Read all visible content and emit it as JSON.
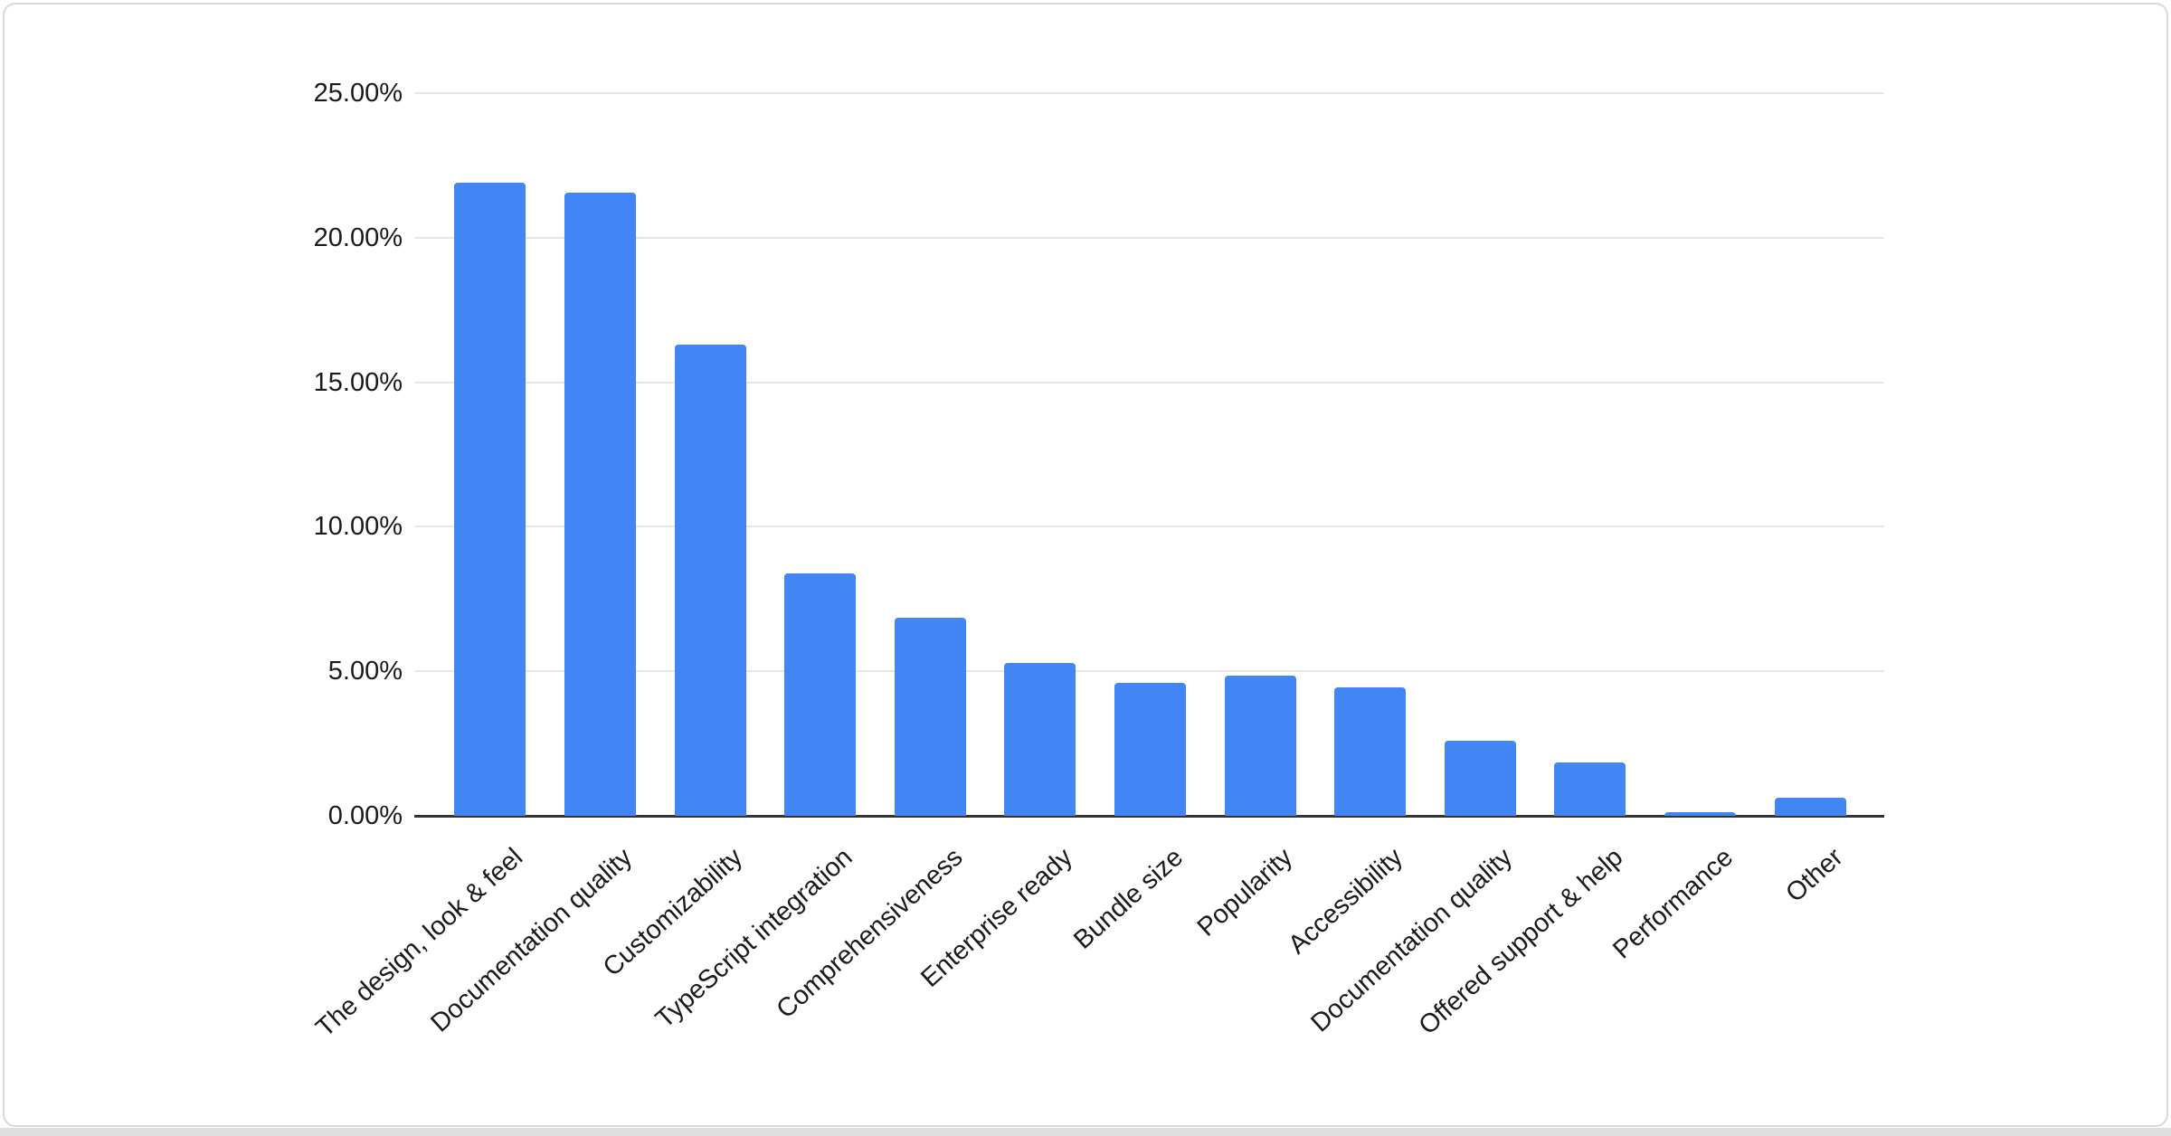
{
  "chart_data": {
    "type": "bar",
    "title": "",
    "xlabel": "",
    "ylabel": "",
    "categories": [
      "The design, look & feel",
      "Documentation quality",
      "Customizability",
      "TypeScript integration",
      "Comprehensiveness",
      "Enterprise ready",
      "Bundle size",
      "Popularity",
      "Accessibility",
      "Documentation quality",
      "Offered support & help",
      "Performance",
      "Other"
    ],
    "values": [
      21.9,
      21.55,
      16.3,
      8.4,
      6.85,
      5.3,
      4.6,
      4.85,
      4.45,
      2.6,
      1.85,
      0.12,
      0.63
    ],
    "value_unit": "%",
    "ylim": [
      0,
      25
    ],
    "ytick_labels": [
      "25.00%",
      "20.00%",
      "15.00%",
      "10.00%",
      "5.00%",
      "0.00%"
    ],
    "grid": true,
    "legend_position": "none",
    "bar_corner": "rounded-top",
    "colors": {
      "bar": "#4285f4",
      "gridline": "#e6e6e6",
      "axis_line": "#333333",
      "tick_text": "#1a1a1a",
      "card_border": "#d9d9d9",
      "page_strip": "#dedede",
      "background": "#ffffff"
    }
  }
}
